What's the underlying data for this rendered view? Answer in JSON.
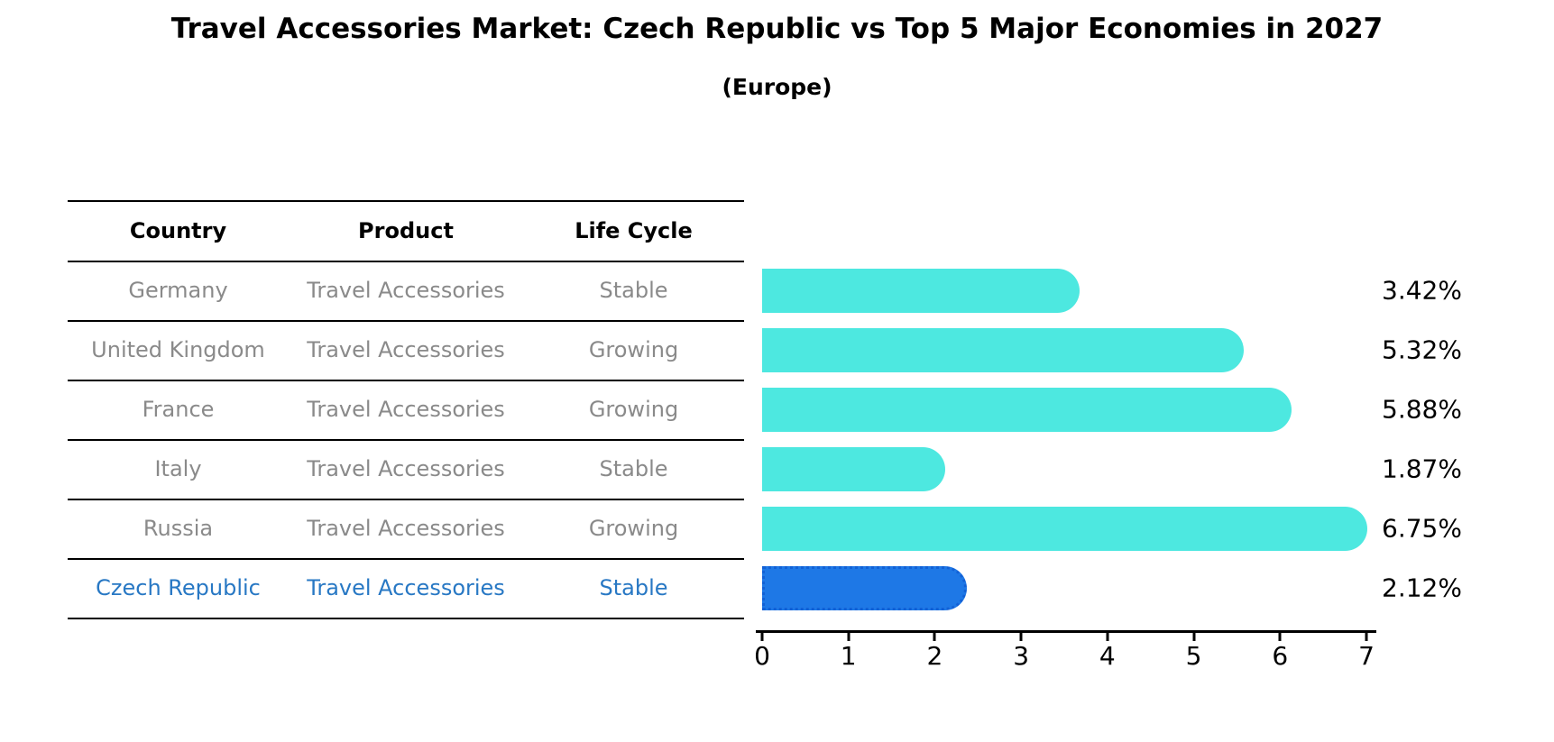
{
  "title": "Travel Accessories Market: Czech Republic vs Top 5 Major Economies in 2027",
  "subtitle": "(Europe)",
  "table": {
    "columns": [
      "Country",
      "Product",
      "Life Cycle"
    ]
  },
  "chart_data": {
    "type": "bar",
    "orientation": "horizontal",
    "title": "Travel Accessories Market: Czech Republic vs Top 5 Major Economies in 2027",
    "subtitle": "(Europe)",
    "categories": [
      "Germany",
      "United Kingdom",
      "France",
      "Italy",
      "Russia",
      "Czech Republic"
    ],
    "values": [
      3.42,
      5.32,
      5.88,
      1.87,
      6.75,
      2.12
    ],
    "rows": [
      {
        "country": "Germany",
        "product": "Travel Accessories",
        "life_cycle": "Stable",
        "value": 3.42,
        "label": "3.42%",
        "highlight": false
      },
      {
        "country": "United Kingdom",
        "product": "Travel Accessories",
        "life_cycle": "Growing",
        "value": 5.32,
        "label": "5.32%",
        "highlight": false
      },
      {
        "country": "France",
        "product": "Travel Accessories",
        "life_cycle": "Growing",
        "value": 5.88,
        "label": "5.88%",
        "highlight": false
      },
      {
        "country": "Italy",
        "product": "Travel Accessories",
        "life_cycle": "Stable",
        "value": 1.87,
        "label": "1.87%",
        "highlight": false
      },
      {
        "country": "Russia",
        "product": "Travel Accessories",
        "life_cycle": "Growing",
        "value": 6.75,
        "label": "6.75%",
        "highlight": false
      },
      {
        "country": "Czech Republic",
        "product": "Travel Accessories",
        "life_cycle": "Stable",
        "value": 2.12,
        "label": "2.12%",
        "highlight": true
      }
    ],
    "xlim": [
      0,
      7
    ],
    "x_ticks": [
      "0",
      "1",
      "2",
      "3",
      "4",
      "5",
      "6",
      "7"
    ],
    "grid": false,
    "legend": false,
    "colors": {
      "bar": "#4de8e0",
      "highlight_bar": "#1e78e6",
      "highlight_bar_edge": "#1261d6",
      "highlight_text": "#2878c4",
      "muted_text": "#8a8a8a",
      "axis_text": "#000000"
    }
  }
}
